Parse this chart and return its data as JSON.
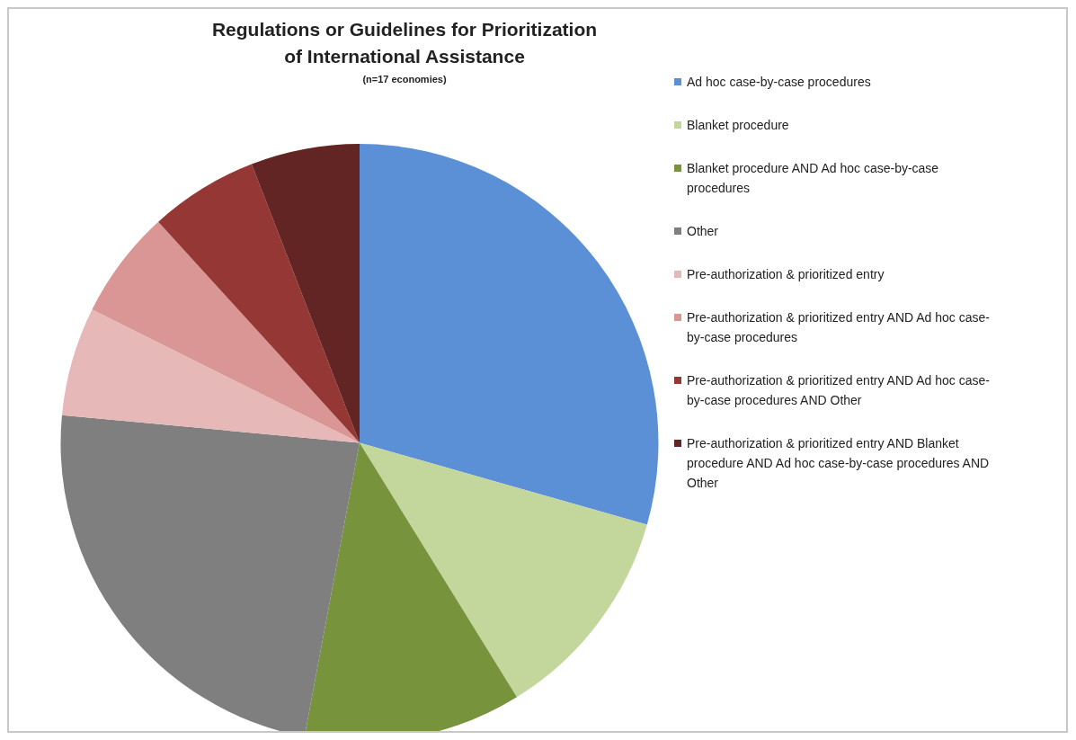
{
  "chart_data": {
    "type": "pie",
    "title": "Regulations or Guidelines for Prioritization of International Assistance",
    "subtitle": "(n=17 economies)",
    "categories": [
      "Ad hoc case-by-case procedures",
      "Blanket procedure",
      "Blanket procedure AND Ad hoc case-by-case procedures",
      "Other",
      "Pre-authorization & prioritized entry",
      "Pre-authorization & prioritized entry AND Ad hoc case-by-case procedures",
      "Pre-authorization & prioritized entry AND Ad hoc case-by-case procedures AND Other",
      "Pre-authorization & prioritized entry AND Blanket procedure AND Ad hoc case-by-case procedures AND Other"
    ],
    "values": [
      29.41,
      11.77,
      11.77,
      23.53,
      5.88,
      5.88,
      5.88,
      5.88
    ],
    "colors": [
      "#5b8fd6",
      "#c3d69b",
      "#77933c",
      "#7f7f7f",
      "#e6b9b8",
      "#d99694",
      "#953735",
      "#632523"
    ],
    "legend": "right"
  }
}
